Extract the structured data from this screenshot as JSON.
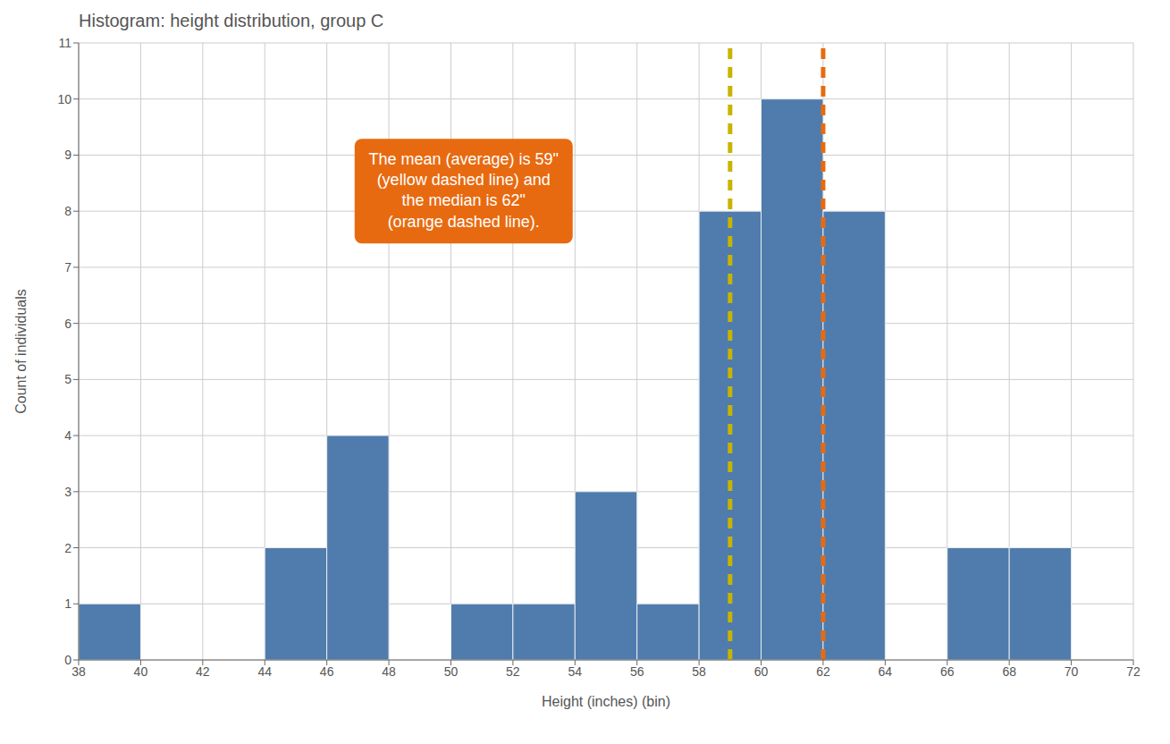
{
  "chart_data": {
    "type": "histogram",
    "title": "Histogram: height distribution, group C",
    "x_label": "Height (inches) (bin)",
    "y_label": "Count of individuals",
    "bins": [
      38,
      40,
      42,
      44,
      46,
      48,
      50,
      52,
      54,
      56,
      58,
      60,
      62,
      64,
      66,
      68,
      70,
      72
    ],
    "values": [
      1,
      0,
      0,
      2,
      4,
      0,
      1,
      1,
      3,
      1,
      8,
      10,
      8,
      0,
      2,
      2,
      0
    ],
    "color": "#4f7cac",
    "xlim": [
      38,
      72
    ],
    "xticks": [
      38,
      40,
      42,
      44,
      46,
      48,
      50,
      52,
      54,
      56,
      58,
      60,
      62,
      64,
      66,
      68,
      70,
      72
    ],
    "ylim": [
      0,
      11
    ],
    "yticks": [
      0,
      1,
      2,
      3,
      4,
      5,
      6,
      7,
      8,
      9,
      10,
      11
    ],
    "grid": true,
    "lines": [
      {
        "x": 59,
        "color": "#c8b400",
        "line_style": "dashed"
      },
      {
        "x": 62,
        "color": "#e86a10",
        "line_style": "dashed"
      }
    ],
    "annotations": [
      {
        "text": "The mean (average) is 59\"\n(yellow dashed line) and\nthe median is 62\"\n(orange dashed line).",
        "color": "#e86a10"
      }
    ]
  }
}
